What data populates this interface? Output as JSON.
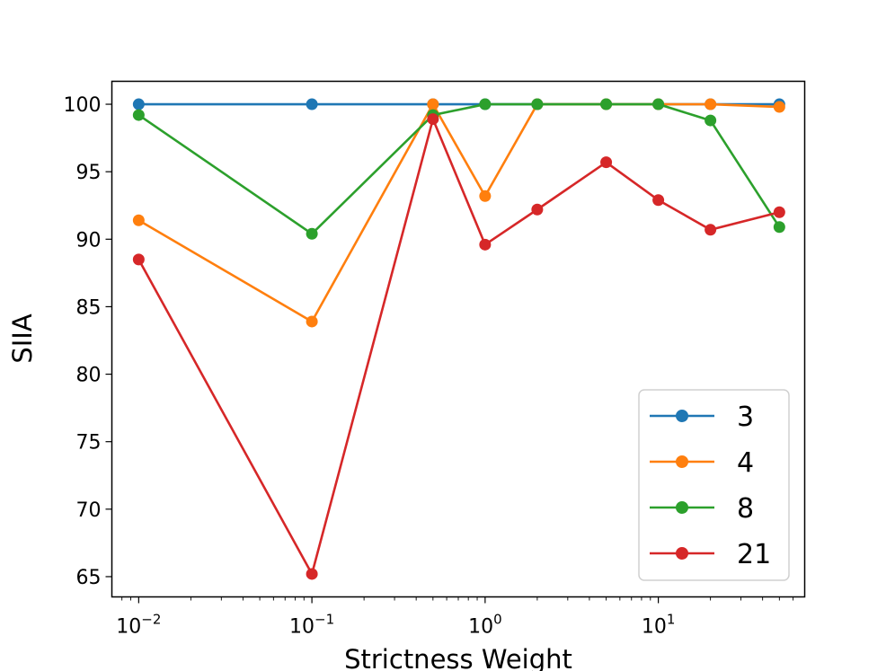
{
  "chart_data": {
    "type": "line",
    "xscale": "log",
    "xlabel": "Strictness Weight",
    "ylabel": "SIIA",
    "xlim": [
      0.007,
      70
    ],
    "ylim": [
      63.5,
      101.7
    ],
    "x": [
      0.01,
      0.1,
      0.5,
      1,
      2,
      5,
      10,
      20,
      50
    ],
    "yticks": [
      65,
      70,
      75,
      80,
      85,
      90,
      95,
      100
    ],
    "xticks": [
      {
        "value": 0.01,
        "base": "10",
        "exp": "−2"
      },
      {
        "value": 0.1,
        "base": "10",
        "exp": "−1"
      },
      {
        "value": 1,
        "base": "10",
        "exp": "0"
      },
      {
        "value": 10,
        "base": "10",
        "exp": "1"
      }
    ],
    "legend_position": "lower-right",
    "series": [
      {
        "name": "3",
        "color": "#1f77b4",
        "values": [
          100,
          100,
          100,
          100,
          100,
          100,
          100,
          100,
          100
        ]
      },
      {
        "name": "4",
        "color": "#ff7f0e",
        "values": [
          91.4,
          83.9,
          100,
          93.2,
          100,
          100,
          100,
          100,
          99.8
        ]
      },
      {
        "name": "8",
        "color": "#2ca02c",
        "values": [
          99.2,
          90.4,
          99.2,
          100,
          100,
          100,
          100,
          98.8,
          90.9
        ]
      },
      {
        "name": "21",
        "color": "#d62728",
        "values": [
          88.5,
          65.2,
          98.9,
          89.6,
          92.2,
          95.7,
          92.9,
          90.7,
          92.0
        ]
      }
    ]
  }
}
